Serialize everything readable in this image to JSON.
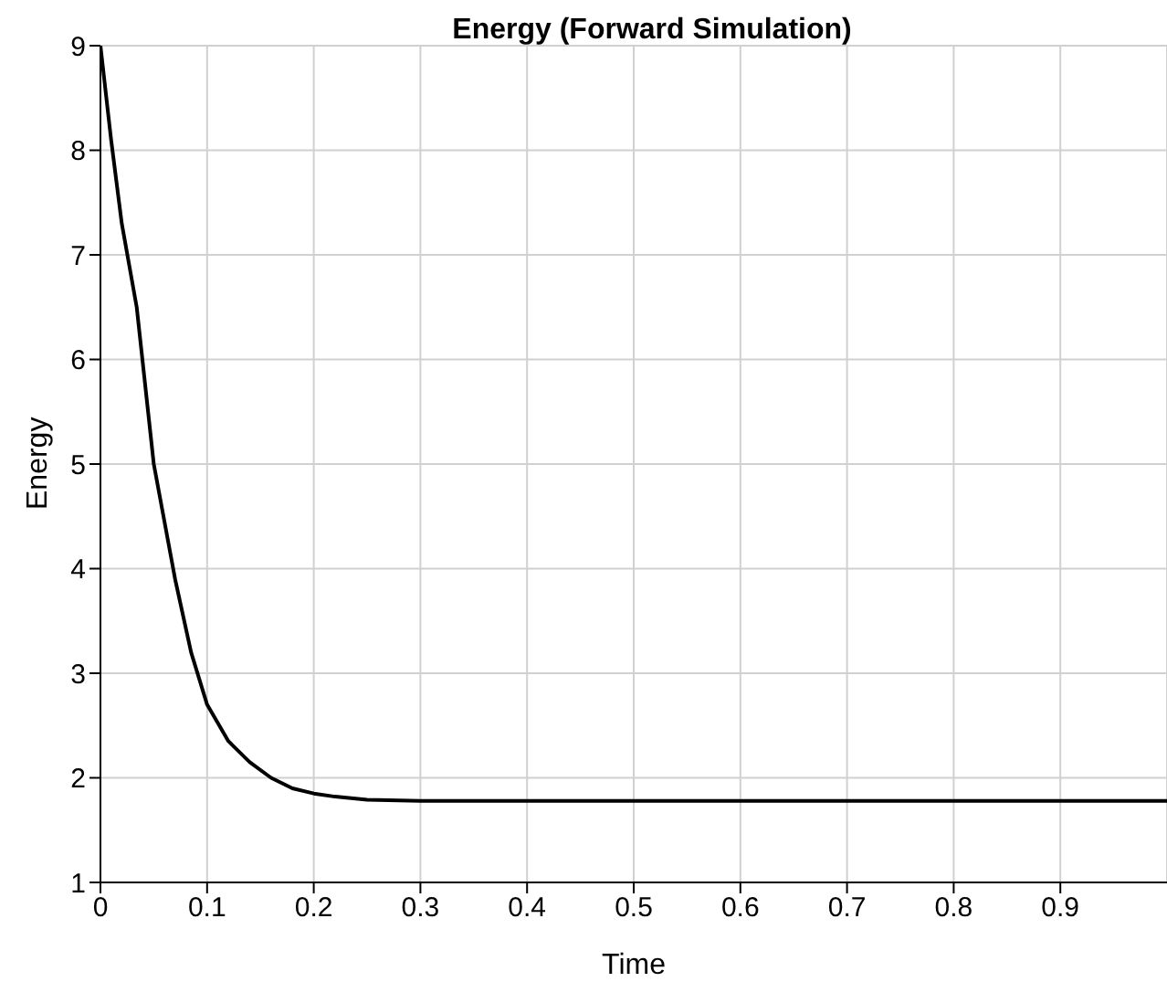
{
  "chart_data": {
    "type": "line",
    "title": "Energy (Forward Simulation)",
    "xlabel": "Time",
    "ylabel": "Energy",
    "x": [
      0,
      0.01,
      0.02,
      0.034,
      0.05,
      0.07,
      0.085,
      0.1,
      0.12,
      0.14,
      0.16,
      0.18,
      0.2,
      0.22,
      0.25,
      0.3,
      0.4,
      0.5,
      0.6,
      0.7,
      0.8,
      0.9,
      1
    ],
    "series": [
      {
        "color": "#000000",
        "values": [
          9,
          8.1,
          7.3,
          6.5,
          5.0,
          3.9,
          3.2,
          2.7,
          2.35,
          2.15,
          2.0,
          1.9,
          1.85,
          1.82,
          1.79,
          1.78,
          1.78,
          1.78,
          1.78,
          1.78,
          1.78,
          1.78,
          1.78
        ]
      }
    ],
    "xlim": [
      0,
      1
    ],
    "xticks": [
      0,
      0.1,
      0.2,
      0.3,
      0.4,
      0.5,
      0.6,
      0.7,
      0.8,
      0.9
    ],
    "ylim": [
      1,
      9
    ],
    "yticks": [
      1,
      2,
      3,
      4,
      5,
      6,
      7,
      8,
      9
    ],
    "grid": true,
    "marker": "none",
    "line_style": "solid",
    "legend": false
  }
}
